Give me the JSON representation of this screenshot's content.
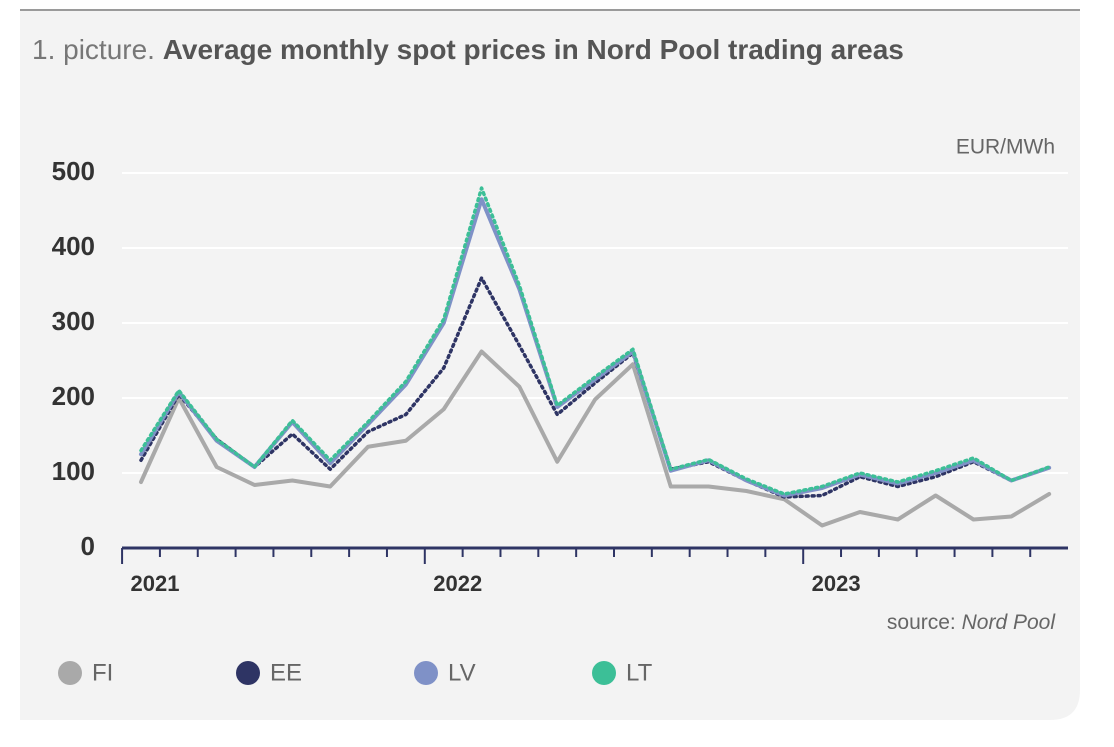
{
  "chart_data": {
    "type": "line",
    "title_prefix": "1. picture.",
    "title": "Average monthly spot prices in Nord Pool trading areas",
    "unit": "EUR/MWh",
    "source_label": "source:",
    "source": "Nord Pool",
    "categories": [
      "2021",
      null,
      null,
      null,
      null,
      null,
      null,
      null,
      "2022",
      null,
      null,
      null,
      null,
      null,
      null,
      null,
      null,
      null,
      "2023",
      null,
      null,
      null,
      null,
      null,
      null
    ],
    "series": [
      {
        "name": "FI",
        "color": "#a9a9a9",
        "style": "solid",
        "values": [
          88,
          200,
          108,
          84,
          90,
          82,
          135,
          143,
          185,
          262,
          215,
          115,
          198,
          245,
          82,
          82,
          76,
          65,
          30,
          48,
          38,
          70,
          38,
          42,
          72
        ]
      },
      {
        "name": "EE",
        "color": "#2e3464",
        "style": "dotted",
        "values": [
          117,
          205,
          145,
          108,
          152,
          105,
          155,
          178,
          240,
          360,
          270,
          178,
          220,
          260,
          105,
          115,
          90,
          68,
          70,
          95,
          82,
          95,
          115,
          90,
          107
        ]
      },
      {
        "name": "LV",
        "color": "#7f91c7",
        "style": "solid",
        "values": [
          125,
          208,
          143,
          108,
          168,
          113,
          165,
          218,
          300,
          465,
          345,
          188,
          225,
          262,
          103,
          117,
          90,
          70,
          80,
          98,
          86,
          100,
          117,
          90,
          107
        ]
      },
      {
        "name": "LT",
        "color": "#3cbf97",
        "style": "dotted",
        "values": [
          130,
          210,
          145,
          108,
          170,
          117,
          168,
          222,
          305,
          480,
          350,
          190,
          228,
          265,
          105,
          118,
          92,
          72,
          82,
          100,
          88,
          103,
          120,
          90,
          108
        ]
      }
    ],
    "ylim": [
      0,
      500
    ],
    "yticks": [
      0,
      100,
      200,
      300,
      400,
      500
    ],
    "grid": true
  }
}
